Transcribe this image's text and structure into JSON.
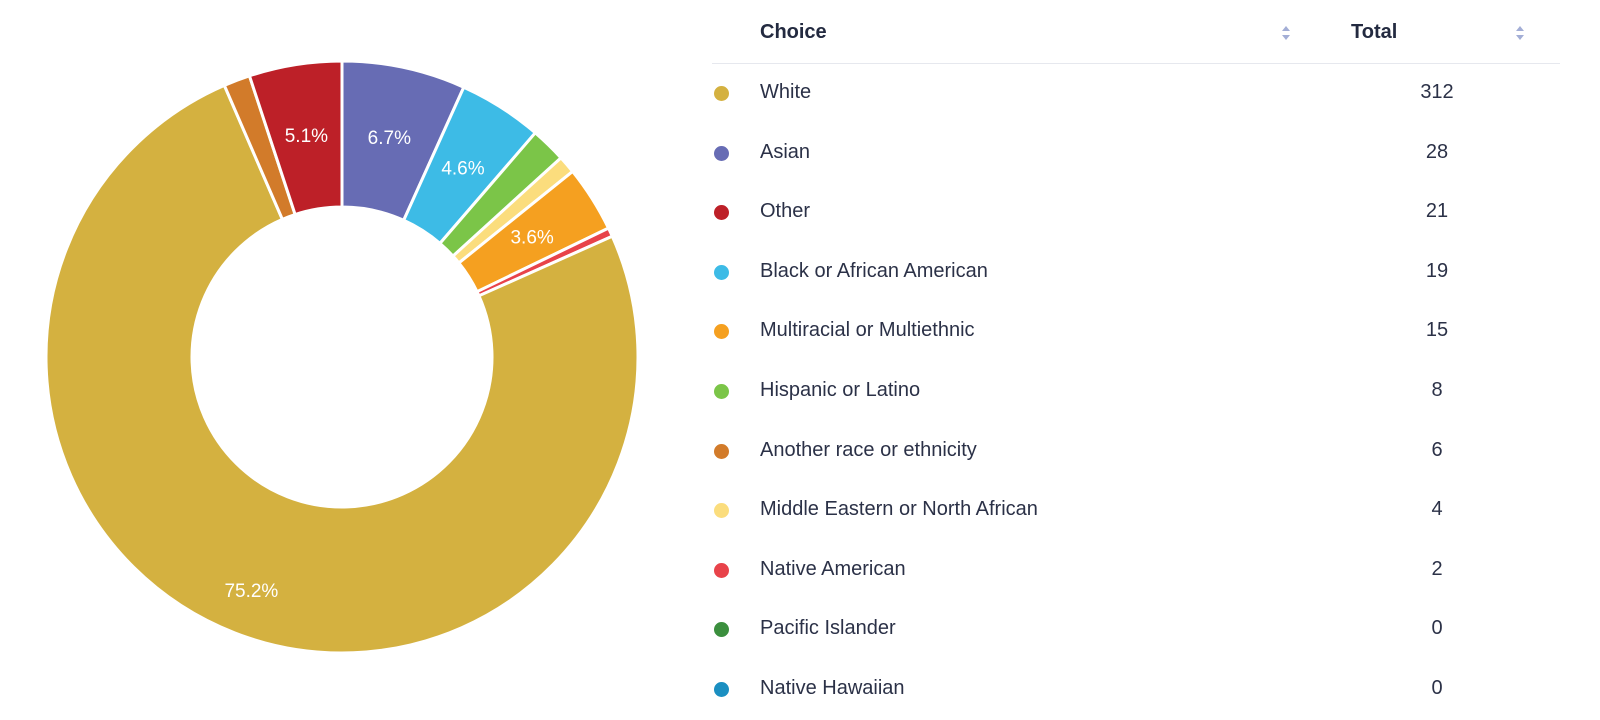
{
  "chart_data": {
    "type": "pie",
    "donut": true,
    "categories": [
      "Asian",
      "Black or African American",
      "Hispanic or Latino",
      "Middle Eastern or North African",
      "Multiracial or Multiethnic",
      "Native American",
      "White",
      "Another race or ethnicity",
      "Other"
    ],
    "values": [
      28,
      19,
      8,
      4,
      15,
      2,
      312,
      6,
      21
    ],
    "colors": [
      "#676cb4",
      "#3dbbe6",
      "#7bc548",
      "#fbdd7d",
      "#f5a020",
      "#e8434a",
      "#d4b140",
      "#d27b2a",
      "#bd2028"
    ],
    "slice_labels": [
      "6.7%",
      "4.6%",
      "",
      "",
      "3.6%",
      "",
      "75.2%",
      "",
      "5.1%"
    ]
  },
  "table": {
    "headers": {
      "choice": "Choice",
      "total": "Total"
    },
    "rows": [
      {
        "choice": "White",
        "total": "312",
        "color": "#d4b140"
      },
      {
        "choice": "Asian",
        "total": "28",
        "color": "#676cb4"
      },
      {
        "choice": "Other",
        "total": "21",
        "color": "#bd2028"
      },
      {
        "choice": "Black or African American",
        "total": "19",
        "color": "#3dbbe6"
      },
      {
        "choice": "Multiracial or Multiethnic",
        "total": "15",
        "color": "#f5a020"
      },
      {
        "choice": "Hispanic or Latino",
        "total": "8",
        "color": "#7bc548"
      },
      {
        "choice": "Another race or ethnicity",
        "total": "6",
        "color": "#d27b2a"
      },
      {
        "choice": "Middle Eastern or North African",
        "total": "4",
        "color": "#fbdd7d"
      },
      {
        "choice": "Native American",
        "total": "2",
        "color": "#e8434a"
      },
      {
        "choice": "Pacific Islander",
        "total": "0",
        "color": "#3b8f3e"
      },
      {
        "choice": "Native Hawaiian",
        "total": "0",
        "color": "#1b8fc1"
      }
    ]
  }
}
